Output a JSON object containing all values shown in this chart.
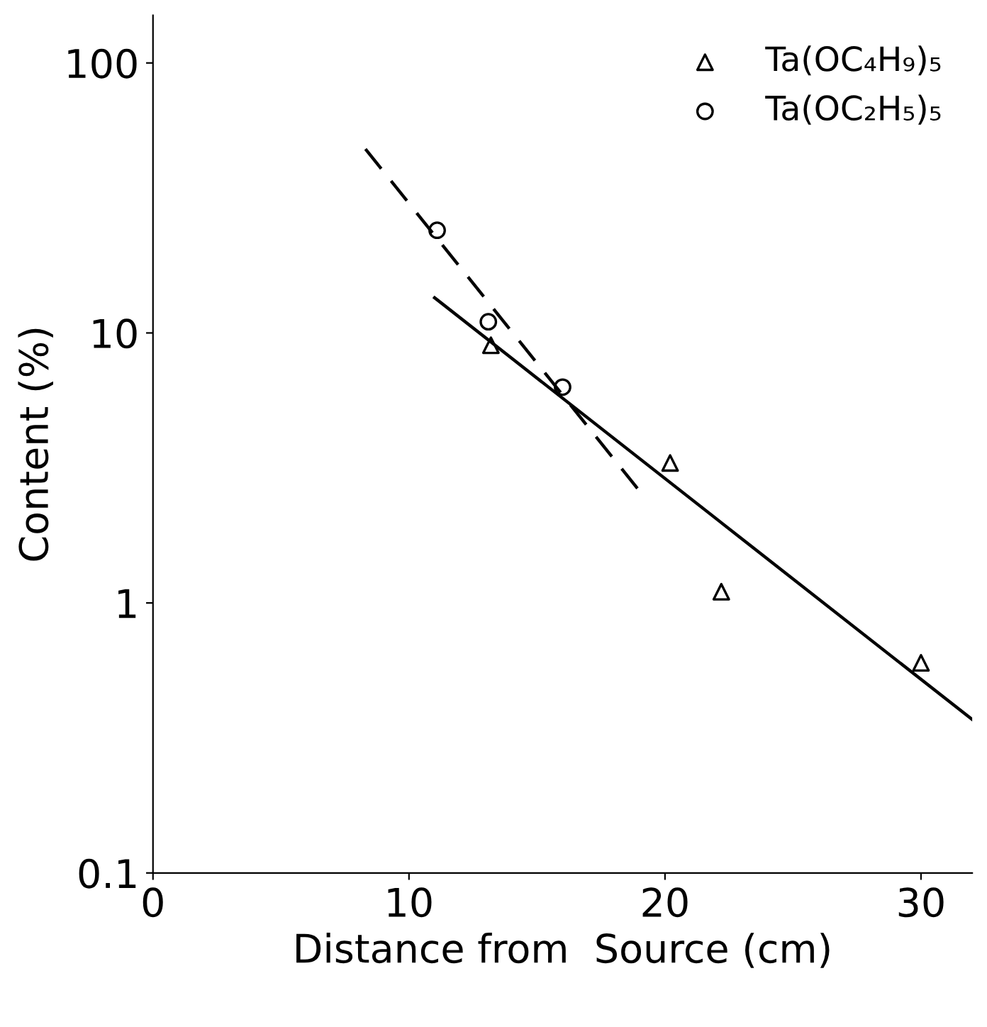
{
  "chart_data": {
    "type": "scatter",
    "xlabel": "Distance from  Source (cm)",
    "ylabel": "Content (%)",
    "log": "y",
    "xlim": [
      0,
      32
    ],
    "xticks": [
      0,
      10,
      20,
      30
    ],
    "ylim": [
      0.1,
      150
    ],
    "yticks": [
      0.1,
      1,
      10,
      100
    ],
    "grid": false,
    "legend": "top right",
    "series": [
      {
        "name": "Ta(OC₄H₉)₅",
        "color": "#000000",
        "marker": "triangle",
        "x": [
          13.2,
          20.2,
          22.2,
          30
        ],
        "values": [
          9,
          3.3,
          1.1,
          0.6
        ]
      },
      {
        "name": "Ta(OC₂H₅)₅",
        "color": "#000000",
        "marker": "circle",
        "x": [
          11.1,
          13.1,
          16.0
        ],
        "values": [
          24,
          11,
          6.3
        ]
      },
      {
        "type": "line",
        "color": "#000000",
        "line_style": "solid",
        "marker": "none",
        "x": [
          11,
          32
        ],
        "values": [
          13.5,
          0.37
        ]
      },
      {
        "type": "line",
        "color": "#000000",
        "line_style": "dashed",
        "marker": "none",
        "x": [
          8.3,
          19
        ],
        "values": [
          48,
          2.6
        ]
      }
    ]
  }
}
